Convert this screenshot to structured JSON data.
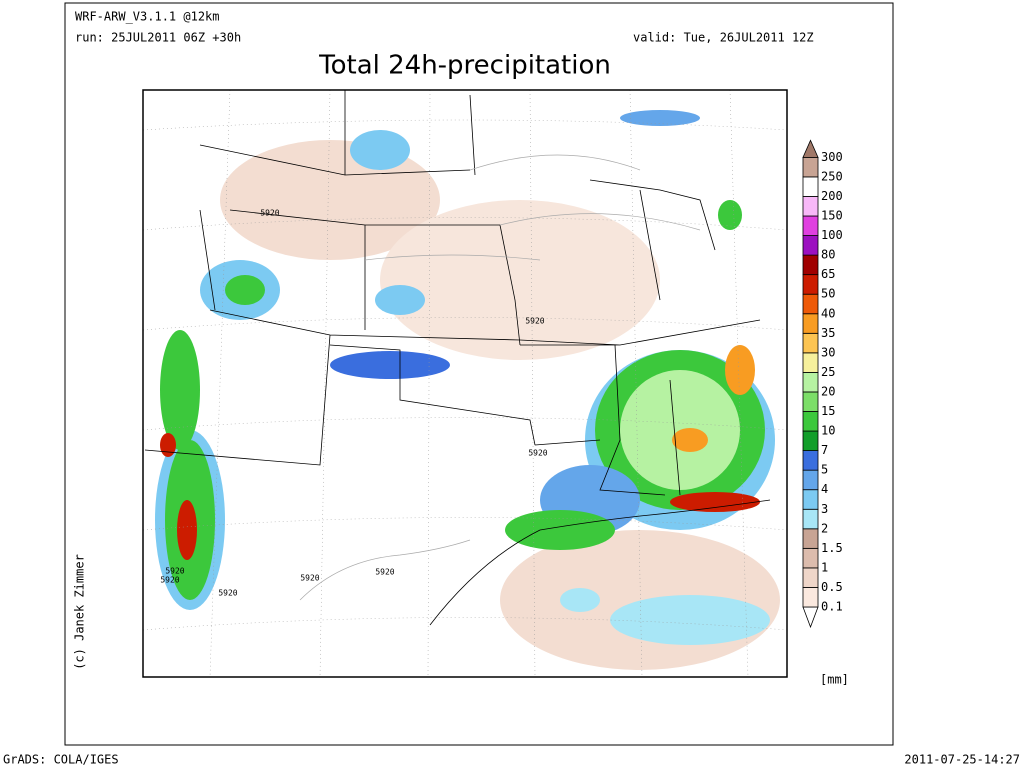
{
  "header": {
    "model": "WRF-ARW_V3.1.1 @12km",
    "run": "run: 25JUL2011 06Z +30h",
    "valid": "valid: Tue, 26JUL2011 12Z",
    "title": "Total 24h-precipitation"
  },
  "map": {
    "contour_labels": [
      "5920",
      "5920",
      "5920",
      "5920",
      "5920",
      "5920",
      "5920",
      "5920"
    ]
  },
  "colorbar": {
    "levels": [
      0.1,
      0.5,
      1,
      1.5,
      2,
      3,
      4,
      5,
      7,
      10,
      15,
      20,
      25,
      30,
      35,
      40,
      50,
      65,
      80,
      100,
      150,
      200,
      250,
      300
    ],
    "colors": [
      "#fbe9df",
      "#efd6c9",
      "#dcbcad",
      "#c8a494",
      "#a8e6f6",
      "#7ccaf2",
      "#64a6ea",
      "#3a6ede",
      "#129e2a",
      "#3cc83c",
      "#7cde68",
      "#b6f2a2",
      "#f6f09c",
      "#fcc452",
      "#f89c22",
      "#ee5a08",
      "#cc1c00",
      "#a00000",
      "#9c10c0",
      "#e040e0",
      "#f8b8f8",
      "#ffffff",
      "#c8a494",
      "#a07868"
    ],
    "unit": "[mm]"
  },
  "footer": {
    "credit": "(c) Janek Zimmer",
    "software": "GrADS: COLA/IGES",
    "timestamp": "2011-07-25-14:27"
  }
}
